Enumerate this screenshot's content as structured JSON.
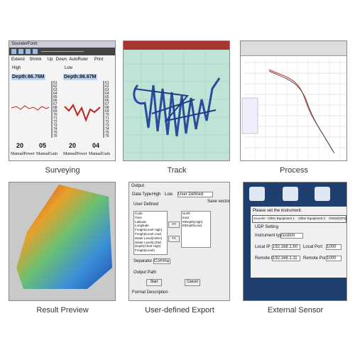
{
  "panels": [
    {
      "caption": "Surveying",
      "window_title": "SounderForm",
      "menu": [
        "Extend",
        "Shrink",
        "Up",
        "Down",
        "AutoRuler",
        "Print"
      ],
      "left": {
        "mode": "High",
        "depth": "Depth:86.76M",
        "power": "20",
        "gain": "05"
      },
      "right": {
        "mode": "Low",
        "depth": "Depth:86.67M",
        "power": "20",
        "gain": "04"
      },
      "scale": [
        "61",
        "62",
        "63",
        "64",
        "65",
        "66",
        "67",
        "68",
        "69",
        "70",
        "71",
        "72",
        "73",
        "74",
        "75",
        "76"
      ],
      "power_label": "ManualPower",
      "gain_label": "ManualGain"
    },
    {
      "caption": "Track"
    },
    {
      "caption": "Process"
    },
    {
      "caption": "Result Preview"
    },
    {
      "caption": "User-defined Export",
      "window_title": "Output",
      "data_type": "Data Type",
      "high": "High",
      "low": "Low",
      "user_defined": "User Defined",
      "save_vector": "Save vector",
      "fields": [
        "Code",
        "Time",
        "Latitude",
        "Longitude",
        "Freight(Level High)",
        "Freight(Level Low)",
        "Water Level(HIGH)",
        "Water Level(LOW)",
        "Depth(Chart High)",
        "Freight(Level)"
      ],
      "selected": [
        "North",
        "East",
        "ElDepth(High)",
        "ElDepth(Low)"
      ],
      "separator": "Separator",
      "comma": "Comma",
      "output_path": "Output Path",
      "start": "Start",
      "cancel": "Cancel",
      "format_description": "Format Description"
    },
    {
      "caption": "External Sensor",
      "prompt": "Please set the instrument.",
      "tabs": [
        "Sounder",
        "Other Equipment 1",
        "Other Equipment 2",
        "GNSS(GPS)"
      ],
      "udp": "UDP Setting",
      "instrument_type": "Instrument type",
      "instrument_value": "custom",
      "local_ip": "Local IP",
      "local_ip_value": "192.168.1.60",
      "local_port": "Local Port",
      "local_port_value": "1000",
      "remote_ip": "Remote IP",
      "remote_ip_value": "192.168.1.11",
      "remote_port": "Remote Port",
      "remote_port_value": "1000"
    }
  ]
}
